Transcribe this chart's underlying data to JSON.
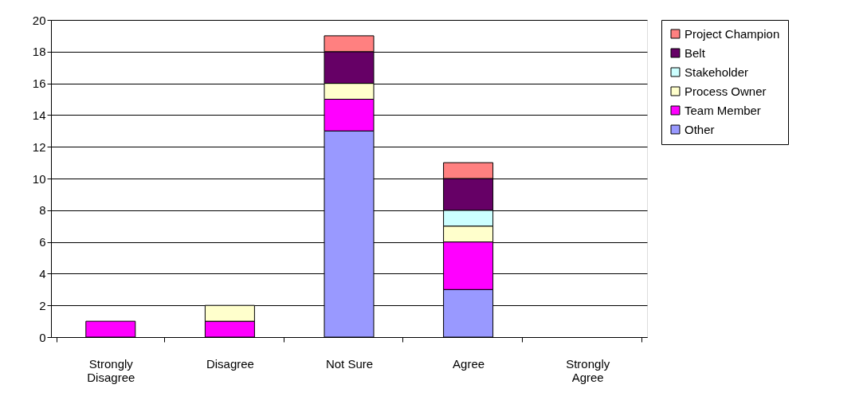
{
  "chart_data": {
    "type": "bar",
    "stacked": true,
    "categories": [
      "Strongly Disagree",
      "Disagree",
      "Not Sure",
      "Agree",
      "Strongly Agree"
    ],
    "series": [
      {
        "name": "Other",
        "color": "#9999ff",
        "values": [
          0,
          0,
          13,
          3,
          0
        ]
      },
      {
        "name": "Team Member",
        "color": "#ff00ff",
        "values": [
          1,
          1,
          2,
          3,
          0
        ]
      },
      {
        "name": "Process Owner",
        "color": "#ffffcc",
        "values": [
          0,
          1,
          1,
          1,
          0
        ]
      },
      {
        "name": "Stakeholder",
        "color": "#ccffff",
        "values": [
          0,
          0,
          0,
          1,
          0
        ]
      },
      {
        "name": "Belt",
        "color": "#660066",
        "values": [
          0,
          0,
          2,
          2,
          0
        ]
      },
      {
        "name": "Project Champion",
        "color": "#ff8080",
        "values": [
          0,
          0,
          1,
          1,
          0
        ]
      }
    ],
    "ylim": [
      0,
      20
    ],
    "yticks": [
      0,
      2,
      4,
      6,
      8,
      10,
      12,
      14,
      16,
      18,
      20
    ],
    "grid": "y",
    "legend": "right"
  }
}
